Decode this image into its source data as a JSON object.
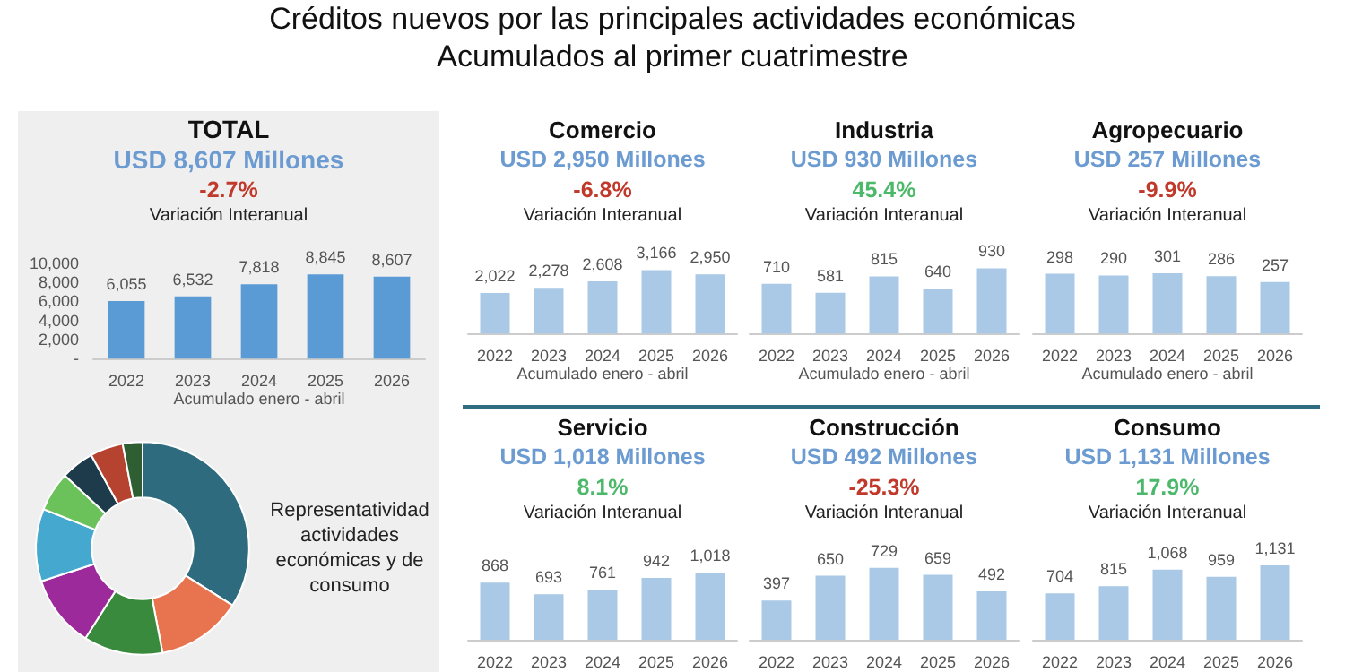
{
  "chart_data": [
    {
      "type": "other",
      "title": "Créditos nuevos por las principales actividades económicas",
      "subtitle": "Acumulados al primer cuatrimestre"
    },
    {
      "type": "bar",
      "title": "TOTAL",
      "subtitle": "USD 8,607 Millones",
      "annotations": [
        "-2.7%",
        "Variación Interanual"
      ],
      "xlabel": "Acumulado enero - abril",
      "categories": [
        "2022",
        "2023",
        "2024",
        "2025",
        "2026"
      ],
      "values": [
        6055,
        6532,
        7818,
        8845,
        8607
      ],
      "value_labels": [
        "6,055",
        "6,532",
        "7,818",
        "8,845",
        "8,607"
      ],
      "color": "#5b9bd5",
      "ylim": [
        0,
        10000
      ],
      "yticks": [
        {
          "value": 0,
          "label": "-"
        },
        {
          "value": 2000,
          "label": "2,000"
        },
        {
          "value": 4000,
          "label": "4,000"
        },
        {
          "value": 6000,
          "label": "6,000"
        },
        {
          "value": 8000,
          "label": "8,000"
        },
        {
          "value": 10000,
          "label": "10,000"
        }
      ]
    },
    {
      "type": "bar",
      "title": "Comercio",
      "subtitle": "USD 2,950 Millones",
      "annotations": [
        "-6.8%",
        "Variación Interanual"
      ],
      "xlabel": "Acumulado enero - abril",
      "categories": [
        "2022",
        "2023",
        "2024",
        "2025",
        "2026"
      ],
      "values": [
        2022,
        2278,
        2608,
        3166,
        2950
      ],
      "value_labels": [
        "2,022",
        "2,278",
        "2,608",
        "3,166",
        "2,950"
      ],
      "color": "#a9c9e6",
      "tick_labels": "x"
    },
    {
      "type": "bar",
      "title": "Industria",
      "subtitle": "USD 930 Millones",
      "annotations": [
        "45.4%",
        "Variación Interanual"
      ],
      "xlabel": "Acumulado enero - abril",
      "categories": [
        "2022",
        "2023",
        "2024",
        "2025",
        "2026"
      ],
      "values": [
        710,
        581,
        815,
        640,
        930
      ],
      "color": "#a9c9e6",
      "data_labels": true,
      "tick_labels": "x"
    },
    {
      "type": "bar",
      "title": "Agropecuario",
      "subtitle": "USD 257 Millones",
      "annotations": [
        "-9.9%",
        "Variación Interanual"
      ],
      "xlabel": "Acumulado enero - abril",
      "categories": [
        "2022",
        "2023",
        "2024",
        "2025",
        "2026"
      ],
      "values": [
        298,
        290,
        301,
        286,
        257
      ],
      "color": "#a9c9e6",
      "data_labels": true,
      "tick_labels": "x"
    },
    {
      "type": "donut",
      "annotations": [
        "Representatividad actividades económicas y de consumo"
      ],
      "categories": [
        null,
        null,
        null,
        null,
        null,
        null,
        null,
        null,
        null
      ],
      "values": [
        34,
        13,
        12,
        11,
        11,
        6,
        5,
        5,
        3
      ],
      "colors": [
        "#2e6b7e",
        "#e8744f",
        "#3a8a3e",
        "#9c2a9a",
        "#45a9cf",
        "#6cc25a",
        "#1d3b4a",
        "#b5432f",
        "#2f5e32"
      ]
    },
    {
      "type": "bar",
      "title": "Servicio",
      "subtitle": "USD 1,018 Millones",
      "annotations": [
        "8.1%",
        "Variación Interanual"
      ],
      "categories": [
        "2022",
        "2023",
        "2024",
        "2025",
        "2026"
      ],
      "values": [
        868,
        693,
        761,
        942,
        1018
      ],
      "value_labels": [
        "868",
        "693",
        "761",
        "942",
        "1,018"
      ],
      "color": "#a9c9e6",
      "tick_labels": "x"
    },
    {
      "type": "bar",
      "title": "Construcción",
      "subtitle": "USD 492 Millones",
      "annotations": [
        "-25.3%",
        "Variación Interanual"
      ],
      "categories": [
        "2022",
        "2023",
        "2024",
        "2025",
        "2026"
      ],
      "values": [
        397,
        650,
        729,
        659,
        492
      ],
      "color": "#a9c9e6",
      "data_labels": true,
      "tick_labels": "x"
    },
    {
      "type": "bar",
      "title": "Consumo",
      "subtitle": "USD 1,131 Millones",
      "annotations": [
        "17.9%",
        "Variación Interanual"
      ],
      "categories": [
        "2022",
        "2023",
        "2024",
        "2025",
        "2026"
      ],
      "values": [
        704,
        815,
        1068,
        959,
        1131
      ],
      "value_labels": [
        "704",
        "815",
        "1,068",
        "959",
        "1,131"
      ],
      "color": "#a9c9e6",
      "tick_labels": "x"
    }
  ]
}
